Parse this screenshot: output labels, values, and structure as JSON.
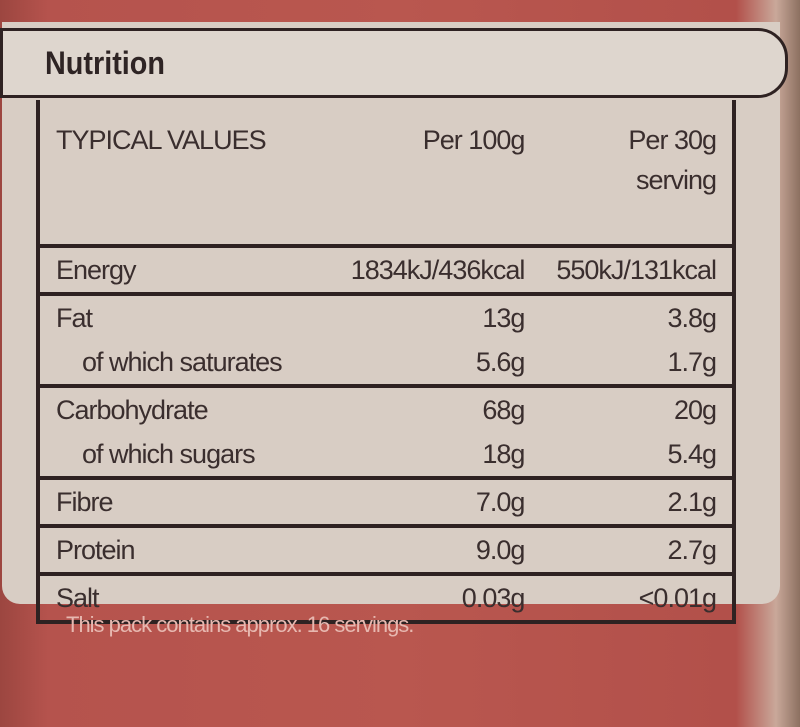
{
  "title": "Nutrition",
  "columns": [
    "TYPICAL VALUES",
    "Per 100g",
    "Per 30g serving"
  ],
  "rows": [
    {
      "label": "Energy",
      "per100": "1834kJ/436kcal",
      "perServing": "550kJ/131kcal"
    },
    {
      "label": "Fat",
      "per100": "13g",
      "perServing": "3.8g"
    },
    {
      "label": "of which saturates",
      "per100": "5.6g",
      "perServing": "1.7g"
    },
    {
      "label": "Carbohydrate",
      "per100": "68g",
      "perServing": "20g"
    },
    {
      "label": "of which sugars",
      "per100": "18g",
      "perServing": "5.4g"
    },
    {
      "label": "Fibre",
      "per100": "7.0g",
      "perServing": "2.1g"
    },
    {
      "label": "Protein",
      "per100": "9.0g",
      "perServing": "2.7g"
    },
    {
      "label": "Salt",
      "per100": "0.03g",
      "perServing": "<0.01g"
    }
  ],
  "footnote": "This pack contains approx. 16 servings.",
  "colors": {
    "packaging": "#b5534d",
    "panel": "#d8cdc4",
    "lines": "#2e2222"
  }
}
